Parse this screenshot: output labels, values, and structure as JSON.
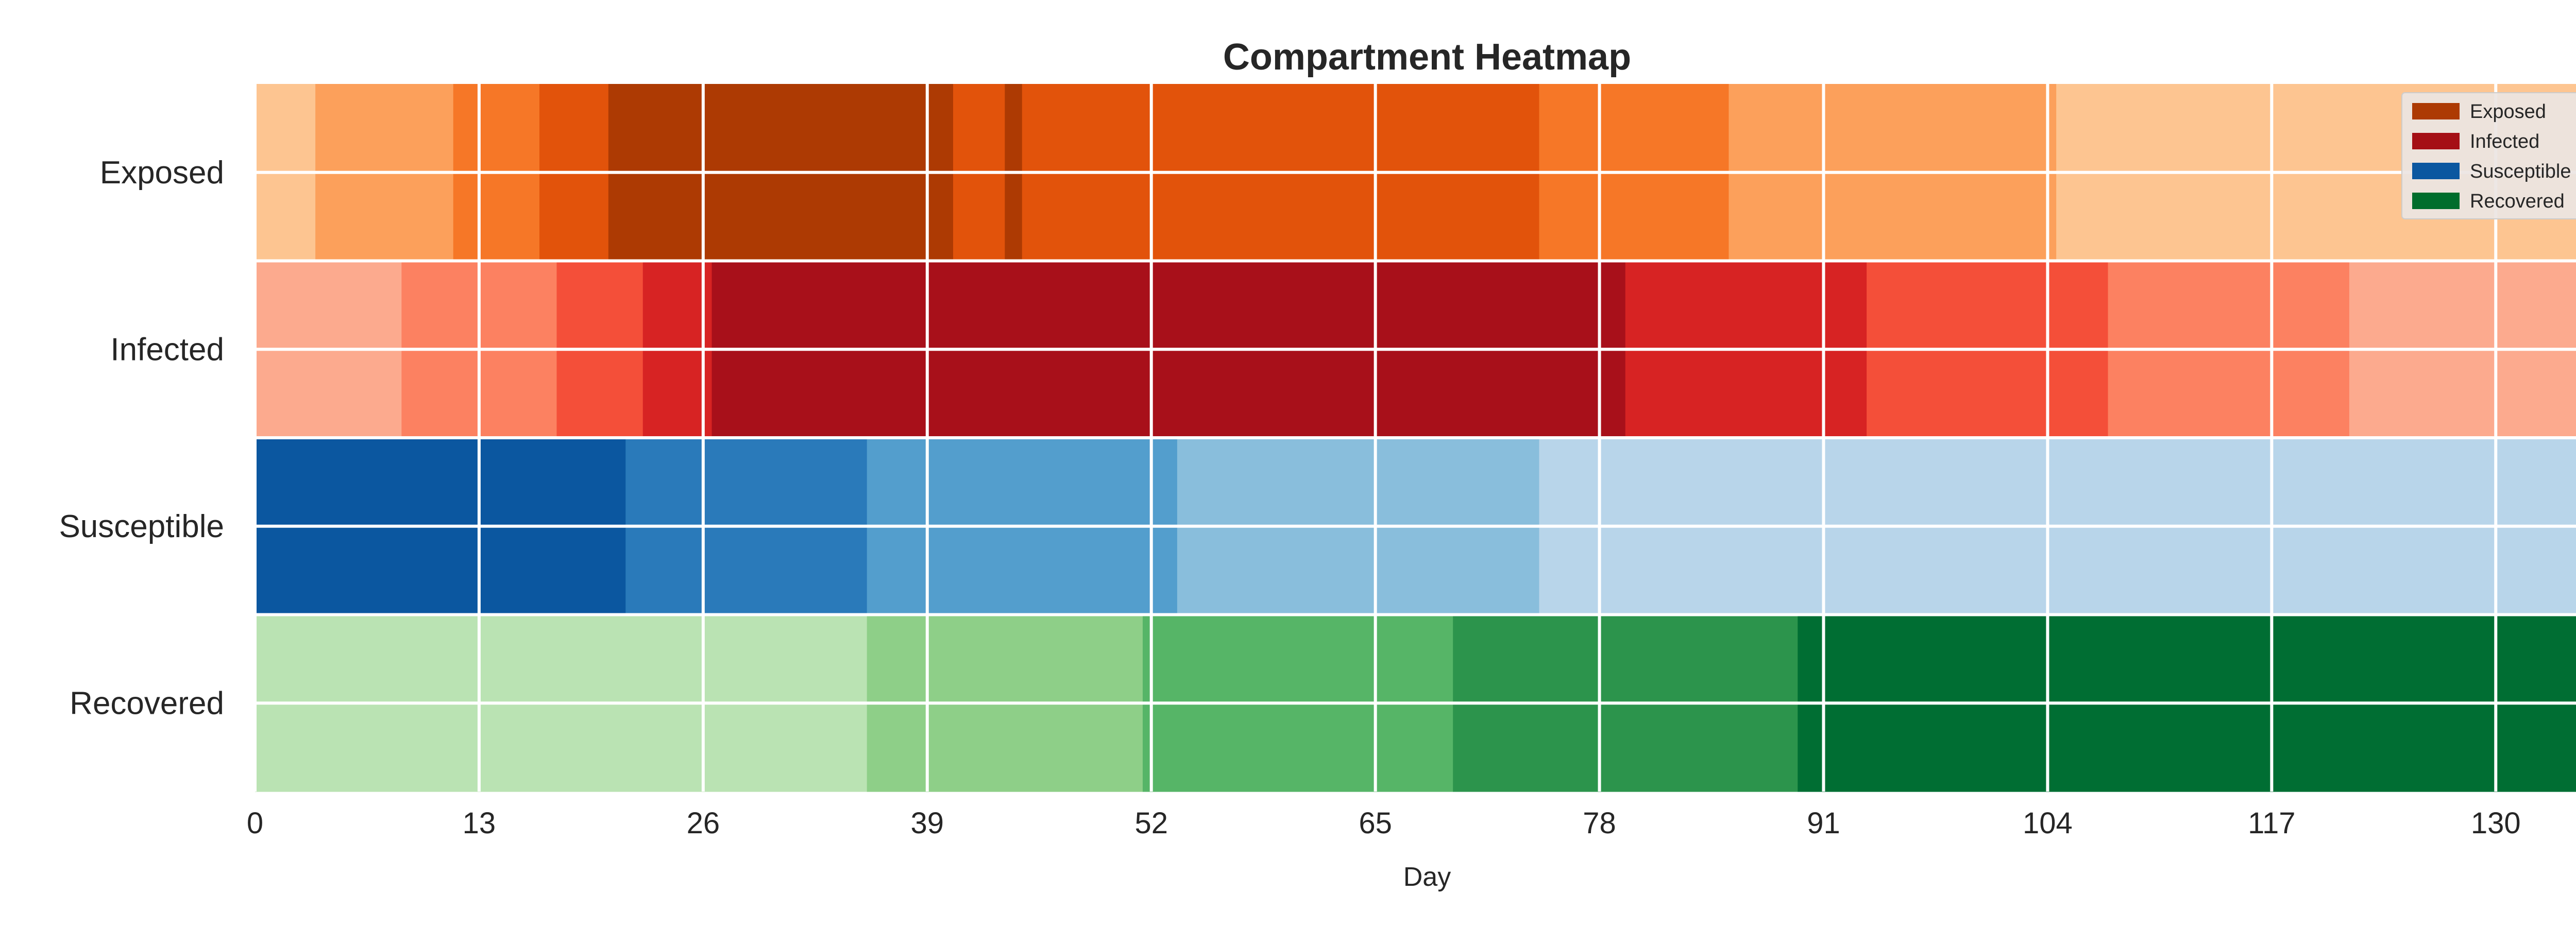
{
  "chart_data": {
    "type": "heatmap",
    "title": "Compartment Heatmap",
    "xlabel": "Day",
    "ylabel": "",
    "xlim": [
      0,
      136
    ],
    "x_ticks": [
      0,
      13,
      26,
      39,
      52,
      65,
      78,
      91,
      104,
      117,
      130
    ],
    "grid": true,
    "legend_position": "top-right",
    "legend": [
      {
        "label": "Exposed",
        "color": "#ad3a03"
      },
      {
        "label": "Infected",
        "color": "#a50f15"
      },
      {
        "label": "Susceptible",
        "color": "#0b57a0"
      },
      {
        "label": "Recovered",
        "color": "#006d2c"
      }
    ],
    "rows": [
      {
        "name": "Exposed",
        "segments": [
          {
            "from": 0,
            "to": 3.5,
            "color": "#fdc591"
          },
          {
            "from": 3.5,
            "to": 11.5,
            "color": "#fca05b"
          },
          {
            "from": 11.5,
            "to": 16.5,
            "color": "#f67727"
          },
          {
            "from": 16.5,
            "to": 20.5,
            "color": "#e2530b"
          },
          {
            "from": 20.5,
            "to": 40.5,
            "color": "#ad3a03"
          },
          {
            "from": 40.5,
            "to": 43.5,
            "color": "#e2530b"
          },
          {
            "from": 43.5,
            "to": 44.5,
            "color": "#ad3a03"
          },
          {
            "from": 44.5,
            "to": 74.5,
            "color": "#e2530b"
          },
          {
            "from": 74.5,
            "to": 85.5,
            "color": "#f67727"
          },
          {
            "from": 85.5,
            "to": 104.5,
            "color": "#fca05b"
          },
          {
            "from": 104.5,
            "to": 136,
            "color": "#fdc591"
          }
        ]
      },
      {
        "name": "Infected",
        "segments": [
          {
            "from": 0,
            "to": 8.5,
            "color": "#fcaa8e"
          },
          {
            "from": 8.5,
            "to": 17.5,
            "color": "#fc8161"
          },
          {
            "from": 17.5,
            "to": 22.5,
            "color": "#f44f39"
          },
          {
            "from": 22.5,
            "to": 26.5,
            "color": "#d72323"
          },
          {
            "from": 26.5,
            "to": 79.5,
            "color": "#a8101a"
          },
          {
            "from": 79.5,
            "to": 93.5,
            "color": "#d72323"
          },
          {
            "from": 93.5,
            "to": 107.5,
            "color": "#f44f39"
          },
          {
            "from": 107.5,
            "to": 121.5,
            "color": "#fc8161"
          },
          {
            "from": 121.5,
            "to": 136,
            "color": "#fcaa8e"
          }
        ]
      },
      {
        "name": "Susceptible",
        "segments": [
          {
            "from": 0,
            "to": 21.5,
            "color": "#0b57a0"
          },
          {
            "from": 21.5,
            "to": 35.5,
            "color": "#2a7aba"
          },
          {
            "from": 35.5,
            "to": 53.5,
            "color": "#539ecd"
          },
          {
            "from": 53.5,
            "to": 74.5,
            "color": "#89bedc"
          },
          {
            "from": 74.5,
            "to": 136,
            "color": "#b8d5ea"
          }
        ]
      },
      {
        "name": "Recovered",
        "segments": [
          {
            "from": 0,
            "to": 35.5,
            "color": "#bae3b3"
          },
          {
            "from": 35.5,
            "to": 51.5,
            "color": "#8ecf88"
          },
          {
            "from": 51.5,
            "to": 69.5,
            "color": "#56b567"
          },
          {
            "from": 69.5,
            "to": 89.5,
            "color": "#2c944c"
          },
          {
            "from": 89.5,
            "to": 136,
            "color": "#006e33"
          }
        ]
      }
    ]
  }
}
